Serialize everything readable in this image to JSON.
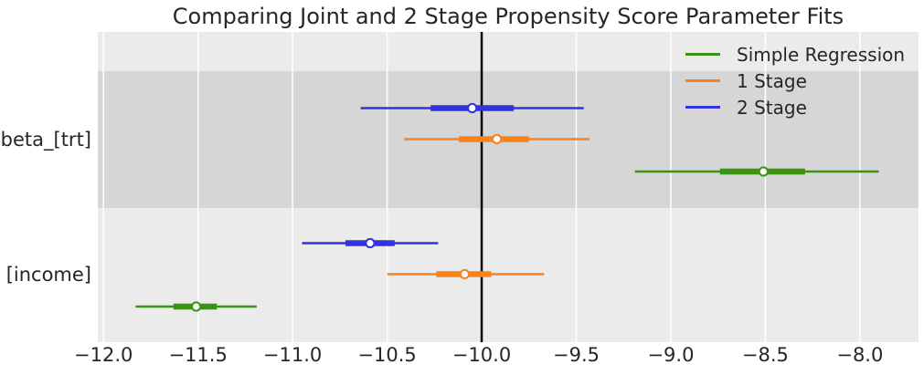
{
  "title": "Comparing Joint and 2 Stage Propensity Score Parameter Fits",
  "style": {
    "band_light": "#ebebeb",
    "band_dark": "#d6d6d6",
    "gridline_color": "#ffffff",
    "text_color": "#262626",
    "marker_fill": "#ffffff",
    "reference_line_color": "#000000"
  },
  "chart_data": {
    "type": "scatter",
    "variant": "forest-plot-with-interval-bars",
    "title": "Comparing Joint and 2 Stage Propensity Score Parameter Fits",
    "xlabel": "",
    "ylabel": "",
    "grid": "vertical white gridlines on alternating gray row bands",
    "legend_position": "upper-right",
    "xlim": [
      -12.03,
      -7.69
    ],
    "categories": [
      "beta_[trt]",
      "[income]"
    ],
    "x_ticks": [
      {
        "value": -12.0,
        "label": "−12.0"
      },
      {
        "value": -11.5,
        "label": "−11.5"
      },
      {
        "value": -11.0,
        "label": "−11.0"
      },
      {
        "value": -10.5,
        "label": "−10.5"
      },
      {
        "value": -10.0,
        "label": "−10.0"
      },
      {
        "value": -9.5,
        "label": "−9.5"
      },
      {
        "value": -9.0,
        "label": "−9.0"
      },
      {
        "value": -8.5,
        "label": "−8.5"
      },
      {
        "value": -8.0,
        "label": "−8.0"
      }
    ],
    "reference_line": {
      "x": -10.0,
      "color": "#000000"
    },
    "series": [
      {
        "name": "Simple Regression",
        "color": "#3a9413",
        "points": [
          {
            "category": "beta_[trt]",
            "mean": -8.51,
            "thick_interval": [
              -8.74,
              -8.29
            ],
            "thin_interval": [
              -9.19,
              -7.9
            ]
          },
          {
            "category": "[income]",
            "mean": -11.51,
            "thick_interval": [
              -11.63,
              -11.4
            ],
            "thin_interval": [
              -11.83,
              -11.19
            ]
          }
        ]
      },
      {
        "name": "1 Stage",
        "color": "#f8821c",
        "points": [
          {
            "category": "beta_[trt]",
            "mean": -9.92,
            "thick_interval": [
              -10.12,
              -9.75
            ],
            "thin_interval": [
              -10.41,
              -9.43
            ]
          },
          {
            "category": "[income]",
            "mean": -10.09,
            "thick_interval": [
              -10.24,
              -9.95
            ],
            "thin_interval": [
              -10.5,
              -9.67
            ]
          }
        ]
      },
      {
        "name": "2 Stage",
        "color": "#3232e1",
        "points": [
          {
            "category": "beta_[trt]",
            "mean": -10.05,
            "thick_interval": [
              -10.27,
              -9.83
            ],
            "thin_interval": [
              -10.64,
              -9.46
            ]
          },
          {
            "category": "[income]",
            "mean": -10.59,
            "thick_interval": [
              -10.72,
              -10.46
            ],
            "thin_interval": [
              -10.95,
              -10.23
            ]
          }
        ]
      }
    ],
    "legend_entries": [
      "Simple Regression",
      "1 Stage",
      "2 Stage"
    ]
  }
}
